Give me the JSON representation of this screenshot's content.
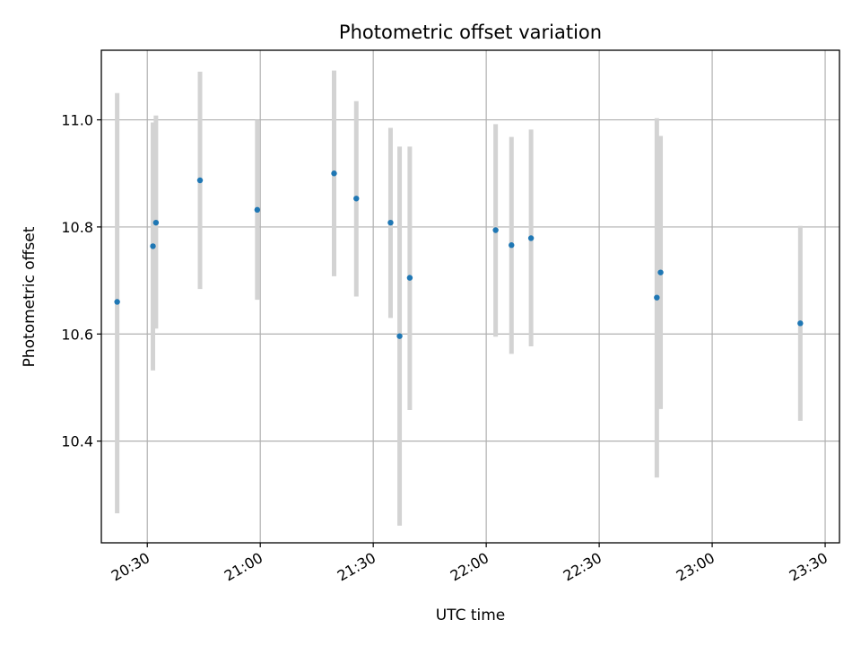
{
  "chart_data": {
    "type": "scatter",
    "title": "Photometric offset variation",
    "xlabel": "UTC time",
    "ylabel": "Photometric offset",
    "x_unit": "minutes after 00:00 UTC",
    "xlim": [
      1217.8,
      1413.8
    ],
    "ylim": [
      10.21,
      11.13
    ],
    "grid": true,
    "x_ticks": [
      {
        "value": 1230,
        "label": "20:30"
      },
      {
        "value": 1260,
        "label": "21:00"
      },
      {
        "value": 1290,
        "label": "21:30"
      },
      {
        "value": 1320,
        "label": "22:00"
      },
      {
        "value": 1350,
        "label": "22:30"
      },
      {
        "value": 1380,
        "label": "23:00"
      },
      {
        "value": 1410,
        "label": "23:30"
      }
    ],
    "y_ticks": [
      {
        "value": 10.4,
        "label": "10.4"
      },
      {
        "value": 10.6,
        "label": "10.6"
      },
      {
        "value": 10.8,
        "label": "10.8"
      },
      {
        "value": 11.0,
        "label": "11.0"
      }
    ],
    "points": [
      {
        "time": "20:22",
        "x": 1222.0,
        "y": 10.66,
        "ymin": 10.265,
        "ymax": 11.05
      },
      {
        "time": "20:31",
        "x": 1231.5,
        "y": 10.764,
        "ymin": 10.532,
        "ymax": 10.995
      },
      {
        "time": "20:32",
        "x": 1232.3,
        "y": 10.808,
        "ymin": 10.61,
        "ymax": 11.008
      },
      {
        "time": "20:44",
        "x": 1244.0,
        "y": 10.887,
        "ymin": 10.684,
        "ymax": 11.09
      },
      {
        "time": "20:59",
        "x": 1259.2,
        "y": 10.832,
        "ymin": 10.664,
        "ymax": 11.0
      },
      {
        "time": "21:20",
        "x": 1279.6,
        "y": 10.9,
        "ymin": 10.708,
        "ymax": 11.092
      },
      {
        "time": "21:26",
        "x": 1285.5,
        "y": 10.853,
        "ymin": 10.67,
        "ymax": 11.035
      },
      {
        "time": "21:35",
        "x": 1294.6,
        "y": 10.808,
        "ymin": 10.63,
        "ymax": 10.985
      },
      {
        "time": "21:37",
        "x": 1297.0,
        "y": 10.596,
        "ymin": 10.242,
        "ymax": 10.95
      },
      {
        "time": "21:40",
        "x": 1299.7,
        "y": 10.705,
        "ymin": 10.458,
        "ymax": 10.95
      },
      {
        "time": "22:03",
        "x": 1322.5,
        "y": 10.794,
        "ymin": 10.595,
        "ymax": 10.992
      },
      {
        "time": "22:07",
        "x": 1326.7,
        "y": 10.766,
        "ymin": 10.563,
        "ymax": 10.968
      },
      {
        "time": "22:12",
        "x": 1331.9,
        "y": 10.779,
        "ymin": 10.577,
        "ymax": 10.982
      },
      {
        "time": "22:45",
        "x": 1365.3,
        "y": 10.668,
        "ymin": 10.332,
        "ymax": 11.003
      },
      {
        "time": "22:46",
        "x": 1366.3,
        "y": 10.715,
        "ymin": 10.46,
        "ymax": 10.97
      },
      {
        "time": "23:23",
        "x": 1403.4,
        "y": 10.62,
        "ymin": 10.438,
        "ymax": 10.802
      }
    ],
    "marker_color": "#1f77b4",
    "errorbar_color": "#d3d3d3",
    "grid_color": "#b0b0b0"
  }
}
